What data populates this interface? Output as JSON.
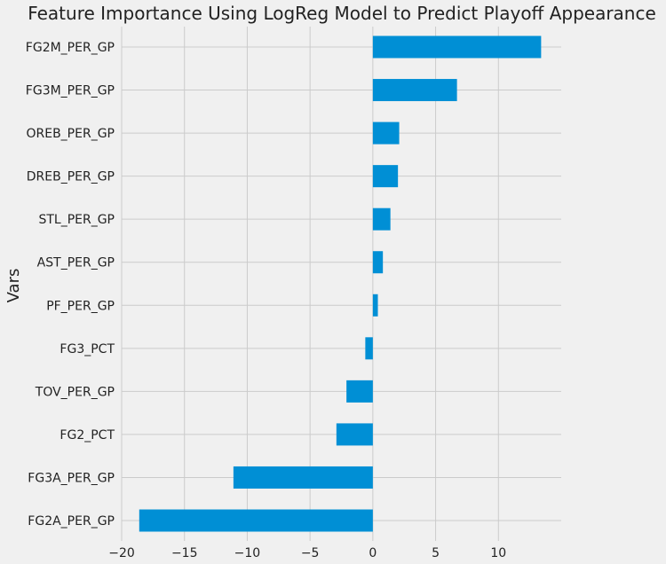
{
  "chart_data": {
    "type": "bar",
    "orientation": "horizontal",
    "title": "Feature Importance Using LogReg Model to Predict Playoff Appearance",
    "xlabel": "",
    "ylabel": "Vars",
    "categories": [
      "FG2M_PER_GP",
      "FG3M_PER_GP",
      "OREB_PER_GP",
      "DREB_PER_GP",
      "STL_PER_GP",
      "AST_PER_GP",
      "PF_PER_GP",
      "FG3_PCT",
      "TOV_PER_GP",
      "FG2_PCT",
      "FG3A_PER_GP",
      "FG2A_PER_GP"
    ],
    "values": [
      13.4,
      6.7,
      2.1,
      2.0,
      1.4,
      0.8,
      0.4,
      -0.6,
      -2.1,
      -2.9,
      -11.1,
      -18.6
    ],
    "xlim": [
      -20,
      15
    ],
    "xticks": [
      -20,
      -15,
      -10,
      -5,
      0,
      5,
      10
    ],
    "xtick_labels": [
      "−20",
      "−15",
      "−10",
      "−5",
      "0",
      "5",
      "10"
    ],
    "grid": true,
    "colors": {
      "bar": "#008fd5",
      "background": "#f0f0f0",
      "grid": "#cbcbcb"
    }
  }
}
